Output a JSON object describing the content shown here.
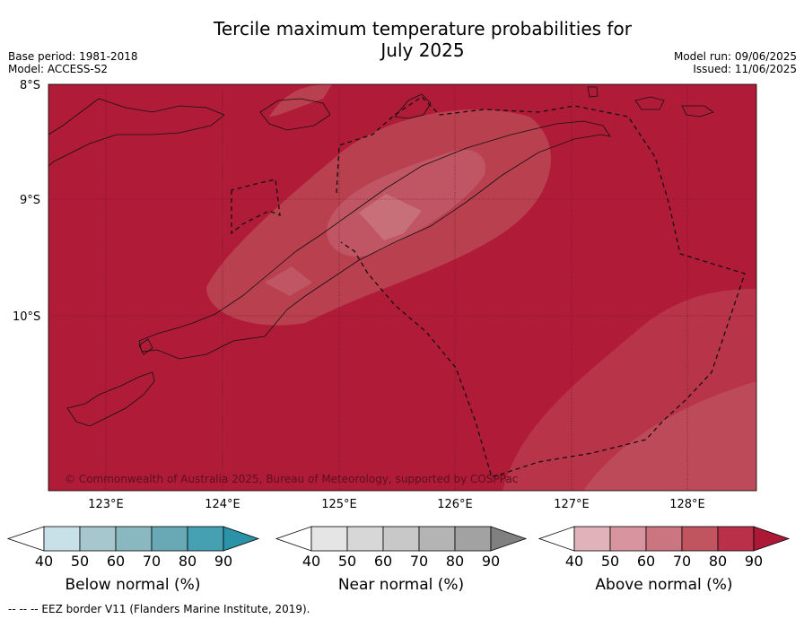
{
  "title_line1": "Tercile maximum temperature probabilities for",
  "title_line2": "July 2025",
  "meta_left": [
    "Base period: 1981-2018",
    "Model: ACCESS-S2"
  ],
  "meta_right": [
    "Model run: 09/06/2025",
    "Issued: 11/06/2025"
  ],
  "map": {
    "lat_labels": [
      "8°S",
      "9°S",
      "10°S"
    ],
    "lon_labels": [
      "123°E",
      "124°E",
      "125°E",
      "126°E",
      "127°E",
      "128°E"
    ],
    "copyright": "© Commonwealth of Australia 2025, Bureau of Meteorology, supported by COSPPac",
    "fill_color": "#b01c38"
  },
  "colorbars": [
    {
      "title": "Below normal (%)",
      "ticks": [
        "40",
        "50",
        "60",
        "70",
        "80",
        "90"
      ],
      "colors": [
        "#ffffff",
        "#c8e1e8",
        "#a6c7cd",
        "#8ab8c1",
        "#69a8b5",
        "#45a0b2",
        "#2b93a8"
      ]
    },
    {
      "title": "Near normal (%)",
      "ticks": [
        "40",
        "50",
        "60",
        "70",
        "80",
        "90"
      ],
      "colors": [
        "#ffffff",
        "#e5e5e5",
        "#d7d7d7",
        "#c8c8c8",
        "#b4b4b4",
        "#a2a2a2",
        "#808080"
      ]
    },
    {
      "title": "Above normal (%)",
      "ticks": [
        "40",
        "50",
        "60",
        "70",
        "80",
        "90"
      ],
      "colors": [
        "#ffffff",
        "#e0b3bb",
        "#d8959f",
        "#cb7580",
        "#c0545f",
        "#b93048",
        "#ad1836"
      ]
    }
  ],
  "footer": "--  --  -- EEZ border V11 (Flanders Marine Institute, 2019)."
}
